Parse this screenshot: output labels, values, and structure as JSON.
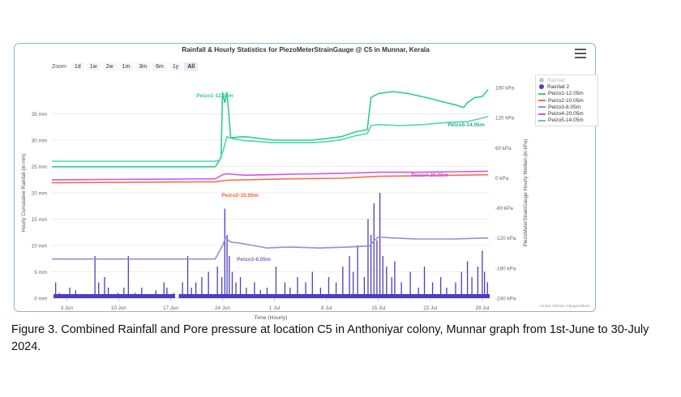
{
  "chart_data": {
    "type": "line",
    "title": "Rainfall & Hourly Statistics for PiezoMeterStrainGauge @ C5 in Munnar, Kerala",
    "xlabel": "Time (Hourly)",
    "ylabel_left": "Hourly Cumulative Rainfall (in mm)",
    "ylabel_right": "PiezoMeterStrainGauge Hourly Median (in kPa)",
    "x_range": [
      "2024-06-01",
      "2024-07-30"
    ],
    "x_ticks": [
      "3 Jun",
      "10 Jun",
      "17 Jun",
      "24 Jun",
      "1 Jul",
      "8 Jul",
      "15 Jul",
      "22 Jul",
      "29 Jul"
    ],
    "y_left_range": [
      0,
      40
    ],
    "y_left_ticks": [
      "0 mm",
      "5 mm",
      "10 mm",
      "15 mm",
      "20 mm",
      "25 mm",
      "30 mm",
      "35 mm"
    ],
    "y_right_range": [
      -240,
      180
    ],
    "y_right_ticks": [
      "-240 kPa",
      "-180 kPa",
      "-120 kPa",
      "-60 kPa",
      "0 kPa",
      "60 kPa",
      "120 kPa",
      "180 kPa"
    ],
    "credit": "Amrita Vishwa Vidyapeetham",
    "series": [
      {
        "name": "Rainfall",
        "axis": "left",
        "kind": "column",
        "visible": false,
        "color": "#c8c8c8",
        "points": []
      },
      {
        "name": "Rainfall 2",
        "axis": "left",
        "kind": "column",
        "color": "#4b3fc0",
        "points": [
          [
            1.5,
            3
          ],
          [
            2.0,
            1
          ],
          [
            3.4,
            2
          ],
          [
            4.2,
            1.5
          ],
          [
            6.8,
            8
          ],
          [
            7.3,
            3
          ],
          [
            8.1,
            4
          ],
          [
            8.6,
            2
          ],
          [
            9.9,
            1
          ],
          [
            10.7,
            2
          ],
          [
            11.3,
            8
          ],
          [
            12.2,
            1
          ],
          [
            13.1,
            2
          ],
          [
            15.0,
            1.5
          ],
          [
            16.1,
            3
          ],
          [
            16.5,
            2
          ],
          [
            17.4,
            1
          ],
          [
            18.6,
            3
          ],
          [
            19.3,
            8
          ],
          [
            19.8,
            2
          ],
          [
            20.4,
            3
          ],
          [
            21.2,
            4
          ],
          [
            22.1,
            5
          ],
          [
            23.3,
            6
          ],
          [
            23.9,
            4
          ],
          [
            24.3,
            17
          ],
          [
            24.6,
            12
          ],
          [
            24.9,
            8
          ],
          [
            25.3,
            5
          ],
          [
            25.8,
            3
          ],
          [
            26.4,
            4
          ],
          [
            27.2,
            2
          ],
          [
            28.3,
            3
          ],
          [
            29.1,
            1.5
          ],
          [
            30.0,
            2
          ],
          [
            31.2,
            6
          ],
          [
            32.4,
            3
          ],
          [
            33.1,
            2
          ],
          [
            34.1,
            4
          ],
          [
            35.2,
            3
          ],
          [
            36.1,
            5
          ],
          [
            37.2,
            2
          ],
          [
            38.3,
            4
          ],
          [
            39.3,
            3
          ],
          [
            40.2,
            6
          ],
          [
            41.1,
            8
          ],
          [
            41.6,
            5
          ],
          [
            42.2,
            10
          ],
          [
            43.1,
            4
          ],
          [
            43.6,
            15
          ],
          [
            44.0,
            12
          ],
          [
            44.4,
            18
          ],
          [
            44.8,
            11
          ],
          [
            45.2,
            20
          ],
          [
            45.6,
            8
          ],
          [
            46.1,
            6
          ],
          [
            46.8,
            4
          ],
          [
            47.2,
            7
          ],
          [
            48.1,
            3
          ],
          [
            49.3,
            5
          ],
          [
            50.4,
            2
          ],
          [
            51.2,
            6
          ],
          [
            52.3,
            3
          ],
          [
            53.4,
            4
          ],
          [
            54.2,
            2
          ],
          [
            55.4,
            3
          ],
          [
            56.2,
            5
          ],
          [
            57.0,
            7
          ],
          [
            57.6,
            4
          ],
          [
            58.4,
            6
          ],
          [
            59.0,
            9
          ],
          [
            59.3,
            5
          ],
          [
            59.7,
            3
          ]
        ]
      },
      {
        "name": "Peizo1-12.05m",
        "axis": "right",
        "color": "#2ecf86",
        "points": [
          [
            1,
            22
          ],
          [
            23,
            22
          ],
          [
            23.3,
            28
          ],
          [
            23.8,
            40
          ],
          [
            24.0,
            170
          ],
          [
            24.3,
            150
          ],
          [
            24.6,
            170
          ],
          [
            25.1,
            80
          ],
          [
            27,
            82
          ],
          [
            31,
            75
          ],
          [
            36,
            75
          ],
          [
            38,
            78
          ],
          [
            40,
            82
          ],
          [
            42,
            92
          ],
          [
            43.5,
            96
          ],
          [
            44,
            160
          ],
          [
            45,
            168
          ],
          [
            47,
            172
          ],
          [
            49,
            168
          ],
          [
            52,
            158
          ],
          [
            53.5,
            152
          ],
          [
            55.5,
            145
          ],
          [
            56.5,
            140
          ],
          [
            57,
            150
          ],
          [
            58,
            160
          ],
          [
            59,
            162
          ],
          [
            59.8,
            176
          ]
        ]
      },
      {
        "name": "Peizo2-10.05m",
        "axis": "right",
        "color": "#ff6b4a",
        "points": [
          [
            1,
            -10
          ],
          [
            23,
            -8
          ],
          [
            24.5,
            -5
          ],
          [
            27,
            -4
          ],
          [
            33,
            -2
          ],
          [
            40,
            -1
          ],
          [
            45,
            3
          ],
          [
            50,
            4
          ],
          [
            55,
            5
          ],
          [
            59.8,
            6
          ]
        ]
      },
      {
        "name": "Peizo3-8.05m",
        "axis": "right",
        "color": "#8d93d6",
        "points": [
          [
            1,
            -162
          ],
          [
            23,
            -162
          ],
          [
            24.0,
            -135
          ],
          [
            24.4,
            -120
          ],
          [
            25.1,
            -128
          ],
          [
            27,
            -132
          ],
          [
            30,
            -140
          ],
          [
            33,
            -138
          ],
          [
            37,
            -140
          ],
          [
            41,
            -138
          ],
          [
            43.8,
            -136
          ],
          [
            44.4,
            -126
          ],
          [
            45,
            -118
          ],
          [
            47,
            -120
          ],
          [
            50,
            -122
          ],
          [
            55,
            -122
          ],
          [
            59.8,
            -120
          ]
        ]
      },
      {
        "name": "Peizo4-20.05m",
        "axis": "right",
        "color": "#d257e6",
        "points": [
          [
            1,
            -4
          ],
          [
            23,
            -2
          ],
          [
            24,
            6
          ],
          [
            24.6,
            8
          ],
          [
            27,
            5
          ],
          [
            33,
            7
          ],
          [
            40,
            9
          ],
          [
            45,
            11
          ],
          [
            50,
            11
          ],
          [
            55,
            12
          ],
          [
            59.8,
            13
          ]
        ]
      },
      {
        "name": "Peizo5-14.05m",
        "axis": "right",
        "color": "#49d9b0",
        "points": [
          [
            1,
            33
          ],
          [
            23,
            33
          ],
          [
            23.6,
            35
          ],
          [
            24.1,
            55
          ],
          [
            24.6,
            82
          ],
          [
            25.3,
            78
          ],
          [
            27,
            74
          ],
          [
            31,
            70
          ],
          [
            36,
            70
          ],
          [
            38,
            72
          ],
          [
            40,
            76
          ],
          [
            42,
            84
          ],
          [
            43.5,
            88
          ],
          [
            44,
            104
          ],
          [
            45,
            106
          ],
          [
            48,
            104
          ],
          [
            51,
            106
          ],
          [
            54,
            110
          ],
          [
            57,
            112
          ],
          [
            59.8,
            122
          ]
        ]
      }
    ],
    "annotations": [
      {
        "text": "Peizo1-12.05m",
        "color": "#2ecf86"
      },
      {
        "text": "Peizo5-14.05m",
        "color": "#2aaa8a"
      },
      {
        "text": "Peizo4-20.05m",
        "color": "#c24fd6"
      },
      {
        "text": "Peizo2-10.05m",
        "color": "#ff5a3a"
      },
      {
        "text": "Peizo3-8.05m",
        "color": "#6e74c4"
      }
    ]
  },
  "toolbar": {
    "zoom_label": "Zoom",
    "buttons": [
      "1d",
      "1w",
      "2w",
      "1m",
      "3m",
      "6m",
      "1y",
      "All"
    ],
    "active": "All"
  },
  "legend_items": [
    "Rainfall",
    "Rainfall 2",
    "Peizo1-12.05m",
    "Peizo2-10.05m",
    "Peizo3-8.05m",
    "Peizo4-20.05m",
    "Peizo5-14.05m"
  ],
  "caption": "Figure 3. Combined Rainfall and Pore pressure at location C5 in Anthoniyar colony, Munnar graph from 1st-June to 30-July 2024."
}
